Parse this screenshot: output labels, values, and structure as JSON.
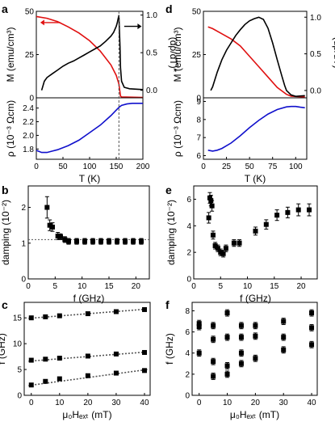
{
  "figure": {
    "panels": [
      "a",
      "b",
      "c",
      "d",
      "e",
      "f"
    ]
  },
  "colors": {
    "magnetization": "#e01010",
    "derivative": "#000000",
    "resistivity": "#1010cc",
    "markers": "#000000",
    "fit": "#555555",
    "dashed_ref": "#555555"
  },
  "labels": {
    "a_left": "M (emu/cm³)",
    "a_right": "(dρ/dT)*",
    "a_rho": "ρ (10⁻³ Ωcm)",
    "a_x": "T (K)",
    "b_y": "damping (10⁻²)",
    "b_x": "f (GHz)",
    "c_y": "f (GHz)",
    "c_x": "μ₀Hₑₓₜ (mT)",
    "d_left": "M (emu/cm³)",
    "d_right": "(dρ/dT)*",
    "d_rho": "ρ (10⁻³ Ωcm)",
    "d_x": "T (K)",
    "e_y": "damping (10⁻²)",
    "e_x": "f (GHz)",
    "f_y": "f (GHz)",
    "f_x": "μ₀Hₑₓₜ (mT)"
  },
  "chart_data": [
    {
      "panel": "a",
      "type": "line",
      "xlim": [
        0,
        200
      ],
      "xticks": [
        "0",
        "50",
        "100",
        "150",
        "200"
      ],
      "top": {
        "ylim_left": [
          0,
          50
        ],
        "yticks_left": [
          "0",
          "25",
          "50"
        ],
        "ylim_right": [
          -0.1,
          1.05
        ],
        "yticks_right": [
          "0.0",
          "0.5",
          "1.0"
        ],
        "series": [
          {
            "key": "M",
            "axis": "left",
            "x": [
              0,
              20,
              40,
              60,
              80,
              100,
              120,
              140,
              150,
              155,
              158,
              160,
              200
            ],
            "y": [
              47,
              46,
              44,
              41,
              37.5,
              33,
              27,
              19,
              13,
              8,
              1,
              0.5,
              0.2
            ]
          },
          {
            "key": "drho",
            "axis": "right",
            "x": [
              10,
              15,
              20,
              30,
              40,
              50,
              60,
              70,
              80,
              90,
              100,
              110,
              120,
              130,
              140,
              145,
              150,
              152,
              155,
              157,
              158,
              160,
              165,
              175,
              200
            ],
            "y": [
              0,
              0.12,
              0.17,
              0.22,
              0.27,
              0.32,
              0.36,
              0.39,
              0.43,
              0.47,
              0.51,
              0.55,
              0.59,
              0.65,
              0.72,
              0.77,
              0.85,
              0.9,
              1.0,
              0.6,
              0.3,
              0.12,
              0.04,
              0.02,
              0.01
            ]
          }
        ]
      },
      "bottom": {
        "ylim": [
          1.65,
          2.55
        ],
        "yticks": [
          "1.8",
          "2.0",
          "2.2",
          "2.4"
        ],
        "ytickvals": [
          1.8,
          2.0,
          2.2,
          2.4
        ],
        "series": [
          {
            "key": "rho",
            "x": [
              0,
              10,
              20,
              30,
              40,
              60,
              80,
              100,
              120,
              140,
              150,
              155,
              160,
              170,
              180,
              190,
              200
            ],
            "y": [
              1.78,
              1.75,
              1.75,
              1.77,
              1.79,
              1.85,
              1.93,
              2.04,
              2.15,
              2.29,
              2.37,
              2.41,
              2.44,
              2.46,
              2.47,
              2.47,
              2.47
            ]
          }
        ]
      },
      "vline_x": 155,
      "arrows": [
        {
          "color": "red",
          "direction": "left",
          "near": "M"
        },
        {
          "color": "black",
          "direction": "right",
          "near": "drho"
        }
      ]
    },
    {
      "panel": "b",
      "type": "scatter",
      "xlim": [
        0,
        22.5
      ],
      "xticks": [
        "0",
        "5",
        "10",
        "15",
        "20"
      ],
      "xtickvals": [
        0,
        5,
        10,
        15,
        20
      ],
      "ylim": [
        0,
        2.6
      ],
      "yticks": [
        "0",
        "1",
        "2"
      ],
      "ytickvals": [
        0,
        1,
        2
      ],
      "points": {
        "x": [
          3.5,
          4.0,
          4.5,
          5.5,
          6.0,
          6.8,
          7.5,
          9.0,
          10.5,
          12.0,
          13.5,
          15.0,
          16.5,
          18.0,
          19.5,
          21.0
        ],
        "y": [
          2.0,
          1.5,
          1.45,
          1.2,
          1.18,
          1.1,
          1.05,
          1.05,
          1.05,
          1.05,
          1.05,
          1.05,
          1.05,
          1.05,
          1.05,
          1.05
        ],
        "err": [
          0.3,
          0.15,
          0.12,
          0.1,
          0.08,
          0.08,
          0.08,
          0.08,
          0.08,
          0.08,
          0.08,
          0.08,
          0.08,
          0.08,
          0.08,
          0.08
        ]
      },
      "hline_y": 1.1
    },
    {
      "panel": "c",
      "type": "scatter",
      "xlim": [
        -2.5,
        42
      ],
      "xticks": [
        "0",
        "10",
        "20",
        "30",
        "40"
      ],
      "xtickvals": [
        0,
        10,
        20,
        30,
        40
      ],
      "ylim": [
        0,
        18
      ],
      "yticks": [
        "0",
        "5",
        "10",
        "15"
      ],
      "ytickvals": [
        0,
        5,
        10,
        15
      ],
      "series": [
        {
          "x": [
            0,
            5,
            10,
            20,
            30,
            40
          ],
          "y": [
            2.0,
            2.7,
            3.2,
            3.8,
            4.3,
            4.8
          ]
        },
        {
          "x": [
            0,
            5,
            10,
            20,
            30,
            40
          ],
          "y": [
            6.8,
            7.0,
            7.2,
            7.6,
            8.0,
            8.3
          ]
        },
        {
          "x": [
            0,
            5,
            10,
            20,
            30,
            40
          ],
          "y": [
            15.0,
            15.2,
            15.4,
            15.8,
            16.2,
            16.6
          ]
        }
      ],
      "fits": [
        {
          "x": [
            -1,
            41
          ],
          "y": [
            1.9,
            5.0
          ]
        },
        {
          "x": [
            -1,
            41
          ],
          "y": [
            6.6,
            8.4
          ]
        },
        {
          "x": [
            -1,
            41
          ],
          "y": [
            14.9,
            16.7
          ]
        }
      ]
    },
    {
      "panel": "d",
      "type": "line",
      "xlim": [
        0,
        112
      ],
      "xticks": [
        "0",
        "25",
        "50",
        "75",
        "100"
      ],
      "top": {
        "ylim_left": [
          0,
          50
        ],
        "yticks_left": [
          "0",
          "25",
          "50"
        ],
        "ylim_right": [
          -0.1,
          1.08
        ],
        "yticks_right": [
          "0.0",
          "0.5",
          "1.0"
        ],
        "series": [
          {
            "key": "M",
            "axis": "left",
            "x": [
              5,
              10,
              20,
              30,
              40,
              50,
              60,
              70,
              80,
              85,
              90,
              95,
              100,
              110
            ],
            "y": [
              41,
              40,
              37,
              34,
              30,
              24,
              18,
              12,
              6,
              4,
              2,
              1,
              0.8,
              0.5
            ]
          },
          {
            "key": "drho",
            "axis": "right",
            "x": [
              8,
              10,
              15,
              20,
              25,
              30,
              35,
              40,
              45,
              50,
              55,
              60,
              65,
              70,
              75,
              80,
              85,
              88,
              90,
              95,
              100,
              110
            ],
            "y": [
              0,
              0.05,
              0.25,
              0.42,
              0.55,
              0.65,
              0.75,
              0.83,
              0.9,
              0.95,
              0.98,
              1.0,
              0.97,
              0.85,
              0.65,
              0.42,
              0.2,
              0.07,
              0.0,
              -0.06,
              -0.08,
              -0.07
            ]
          }
        ]
      },
      "bottom": {
        "ylim": [
          5.8,
          9.2
        ],
        "yticks": [
          "6",
          "7",
          "8",
          "9"
        ],
        "ytickvals": [
          6,
          7,
          8,
          9
        ],
        "series": [
          {
            "key": "rho",
            "x": [
              5,
              10,
              15,
              20,
              30,
              40,
              50,
              60,
              70,
              80,
              90,
              95,
              100,
              105,
              110
            ],
            "y": [
              6.3,
              6.25,
              6.3,
              6.4,
              6.7,
              7.1,
              7.55,
              7.95,
              8.3,
              8.55,
              8.7,
              8.72,
              8.72,
              8.68,
              8.65
            ]
          }
        ]
      }
    },
    {
      "panel": "e",
      "type": "scatter",
      "xlim": [
        0,
        23
      ],
      "xticks": [
        "0",
        "5",
        "10",
        "15",
        "20"
      ],
      "xtickvals": [
        0,
        5,
        10,
        15,
        20
      ],
      "ylim": [
        0,
        7
      ],
      "yticks": [
        "0",
        "2",
        "4",
        "6"
      ],
      "ytickvals": [
        0,
        2,
        4,
        6
      ],
      "points": {
        "x": [
          2.8,
          3.0,
          3.2,
          3.4,
          3.6,
          4.0,
          4.5,
          5.0,
          5.5,
          6.0,
          7.5,
          8.5,
          11.5,
          13.5,
          15.5,
          17.5,
          19.5,
          21.5
        ],
        "y": [
          4.6,
          6.1,
          5.9,
          5.5,
          3.3,
          2.5,
          2.3,
          2.0,
          1.9,
          2.3,
          2.7,
          2.7,
          3.6,
          4.1,
          4.8,
          5.0,
          5.2,
          5.2
        ],
        "err": [
          0.4,
          0.4,
          0.4,
          0.4,
          0.3,
          0.25,
          0.25,
          0.25,
          0.25,
          0.25,
          0.25,
          0.25,
          0.3,
          0.35,
          0.4,
          0.4,
          0.45,
          0.45
        ]
      }
    },
    {
      "panel": "f",
      "type": "scatter",
      "xlim": [
        -2.5,
        42
      ],
      "xticks": [
        "0",
        "10",
        "20",
        "30",
        "40"
      ],
      "xtickvals": [
        0,
        10,
        20,
        30,
        40
      ],
      "ylim": [
        0,
        8.8
      ],
      "yticks": [
        "0",
        "2",
        "4",
        "6",
        "8"
      ],
      "ytickvals": [
        0,
        2,
        4,
        6,
        8
      ],
      "points": {
        "x": [
          0,
          0,
          0,
          5,
          5,
          5,
          5,
          10,
          10,
          10,
          10,
          15,
          15,
          15,
          15,
          20,
          20,
          20,
          30,
          30,
          30,
          40,
          40,
          40
        ],
        "y": [
          4.0,
          6.5,
          6.8,
          1.8,
          3.2,
          5.3,
          6.6,
          2.0,
          2.8,
          5.5,
          7.8,
          3.0,
          4.0,
          5.5,
          6.6,
          3.5,
          5.6,
          6.6,
          4.3,
          5.5,
          7.0,
          4.8,
          6.4,
          7.8
        ],
        "err": [
          0.3,
          0.3,
          0.3,
          0.3,
          0.3,
          0.3,
          0.3,
          0.3,
          0.3,
          0.3,
          0.3,
          0.3,
          0.3,
          0.3,
          0.3,
          0.3,
          0.3,
          0.3,
          0.3,
          0.3,
          0.3,
          0.3,
          0.3,
          0.3
        ]
      }
    }
  ]
}
